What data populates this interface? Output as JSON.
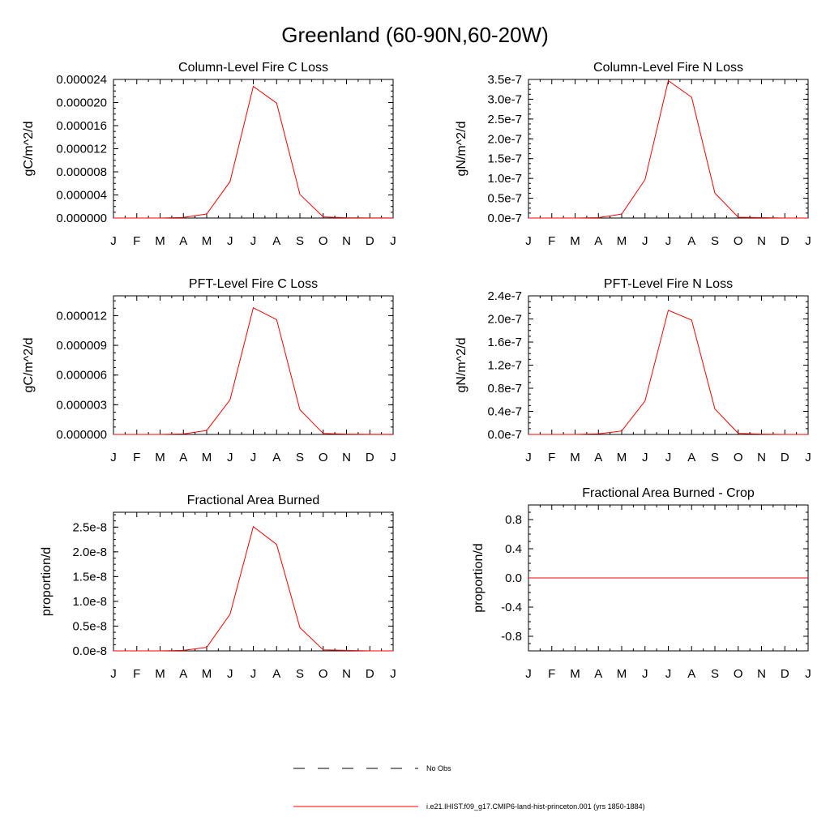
{
  "figure": {
    "title": "Greenland (60-90N,60-20W)",
    "series_color": "#ff0000",
    "month_labels": [
      "J",
      "F",
      "M",
      "A",
      "M",
      "J",
      "J",
      "A",
      "S",
      "O",
      "N",
      "D",
      "J"
    ]
  },
  "legend": {
    "items": [
      {
        "label": "No Obs",
        "style": "dashed",
        "color": "#000000"
      },
      {
        "label": "i.e21.IHIST.f09_g17.CMIP6-land-hist-princeton.001 (yrs 1850-1884)",
        "style": "solid",
        "color": "#ff0000"
      }
    ]
  },
  "chart_data": [
    {
      "type": "line",
      "title": "Column-Level Fire C Loss",
      "ylabel": "gC/m^2/d",
      "x": [
        "J",
        "F",
        "M",
        "A",
        "M",
        "J",
        "J",
        "A",
        "S",
        "O",
        "N",
        "D",
        "J"
      ],
      "ylim": [
        0,
        2.4e-05
      ],
      "yticks": [
        0,
        4e-06,
        8e-06,
        1.2e-05,
        1.6e-05,
        2e-05,
        2.4e-05
      ],
      "ytick_labels": [
        "0.000000",
        "0.000004",
        "0.000008",
        "0.000012",
        "0.000016",
        "0.000020",
        "0.000024"
      ],
      "series": [
        {
          "values": [
            0,
            0,
            0,
            1e-07,
            7e-07,
            6.3e-06,
            2.28e-05,
            1.99e-05,
            4.1e-06,
            2e-07,
            5e-08,
            2e-08,
            2e-08
          ]
        }
      ]
    },
    {
      "type": "line",
      "title": "Column-Level Fire N Loss",
      "ylabel": "gN/m^2/d",
      "x": [
        "J",
        "F",
        "M",
        "A",
        "M",
        "J",
        "J",
        "A",
        "S",
        "O",
        "N",
        "D",
        "J"
      ],
      "ylim": [
        0,
        3.5e-07
      ],
      "yticks": [
        0,
        5e-08,
        1e-07,
        1.5e-07,
        2e-07,
        2.5e-07,
        3e-07,
        3.5e-07
      ],
      "ytick_labels": [
        "0.0e-7",
        "0.5e-7",
        "1.0e-7",
        "1.5e-7",
        "2.0e-7",
        "2.5e-7",
        "3.0e-7",
        "3.5e-7"
      ],
      "series": [
        {
          "values": [
            0,
            0,
            0,
            1e-09,
            1e-08,
            9.7e-08,
            3.47e-07,
            3.05e-07,
            6.3e-08,
            2e-09,
            1e-09,
            0,
            0
          ]
        }
      ]
    },
    {
      "type": "line",
      "title": "PFT-Level Fire C Loss",
      "ylabel": "gC/m^2/d",
      "x": [
        "J",
        "F",
        "M",
        "A",
        "M",
        "J",
        "J",
        "A",
        "S",
        "O",
        "N",
        "D",
        "J"
      ],
      "ylim": [
        0,
        1.4e-05
      ],
      "yticks": [
        0,
        3e-06,
        6e-06,
        9e-06,
        1.2e-05
      ],
      "ytick_labels": [
        "0.000000",
        "0.000003",
        "0.000006",
        "0.000009",
        "0.000012"
      ],
      "series": [
        {
          "values": [
            0,
            0,
            0,
            5e-08,
            4e-07,
            3.5e-06,
            1.28e-05,
            1.16e-05,
            2.5e-06,
            1e-07,
            3e-08,
            1e-08,
            1e-08
          ]
        }
      ]
    },
    {
      "type": "line",
      "title": "PFT-Level Fire N Loss",
      "ylabel": "gN/m^2/d",
      "x": [
        "J",
        "F",
        "M",
        "A",
        "M",
        "J",
        "J",
        "A",
        "S",
        "O",
        "N",
        "D",
        "J"
      ],
      "ylim": [
        0,
        2.4e-07
      ],
      "yticks": [
        0,
        4e-08,
        8e-08,
        1.2e-07,
        1.6e-07,
        2e-07,
        2.4e-07
      ],
      "ytick_labels": [
        "0.0e-7",
        "0.4e-7",
        "0.8e-7",
        "1.2e-7",
        "1.6e-7",
        "2.0e-7",
        "2.4e-7"
      ],
      "series": [
        {
          "values": [
            0,
            0,
            0,
            1e-09,
            6e-09,
            5.8e-08,
            2.15e-07,
            1.98e-07,
            4.4e-08,
            2e-09,
            5e-10,
            0,
            0
          ]
        }
      ]
    },
    {
      "type": "line",
      "title": "Fractional Area Burned",
      "ylabel": "proportion/d",
      "x": [
        "J",
        "F",
        "M",
        "A",
        "M",
        "J",
        "J",
        "A",
        "S",
        "O",
        "N",
        "D",
        "J"
      ],
      "ylim": [
        0,
        2.8e-08
      ],
      "yticks": [
        0,
        5e-09,
        1e-08,
        1.5e-08,
        2e-08,
        2.5e-08
      ],
      "ytick_labels": [
        "0.0e-8",
        "0.5e-8",
        "1.0e-8",
        "1.5e-8",
        "2.0e-8",
        "2.5e-8"
      ],
      "series": [
        {
          "values": [
            0,
            0,
            0,
            1e-10,
            7e-10,
            7.4e-09,
            2.51e-08,
            2.15e-08,
            4.7e-09,
            2e-10,
            1e-10,
            0,
            0
          ]
        }
      ]
    },
    {
      "type": "line",
      "title": "Fractional Area Burned - Crop",
      "ylabel": "proportion/d",
      "x": [
        "J",
        "F",
        "M",
        "A",
        "M",
        "J",
        "J",
        "A",
        "S",
        "O",
        "N",
        "D",
        "J"
      ],
      "ylim": [
        -1.0,
        1.0
      ],
      "yticks": [
        -0.8,
        -0.4,
        0.0,
        0.4,
        0.8
      ],
      "ytick_labels": [
        "-0.8",
        "-0.4",
        "0.0",
        "0.4",
        "0.8"
      ],
      "series": [
        {
          "values": [
            0,
            0,
            0,
            0,
            0,
            0,
            0,
            0,
            0,
            0,
            0,
            0,
            0
          ]
        }
      ]
    }
  ]
}
